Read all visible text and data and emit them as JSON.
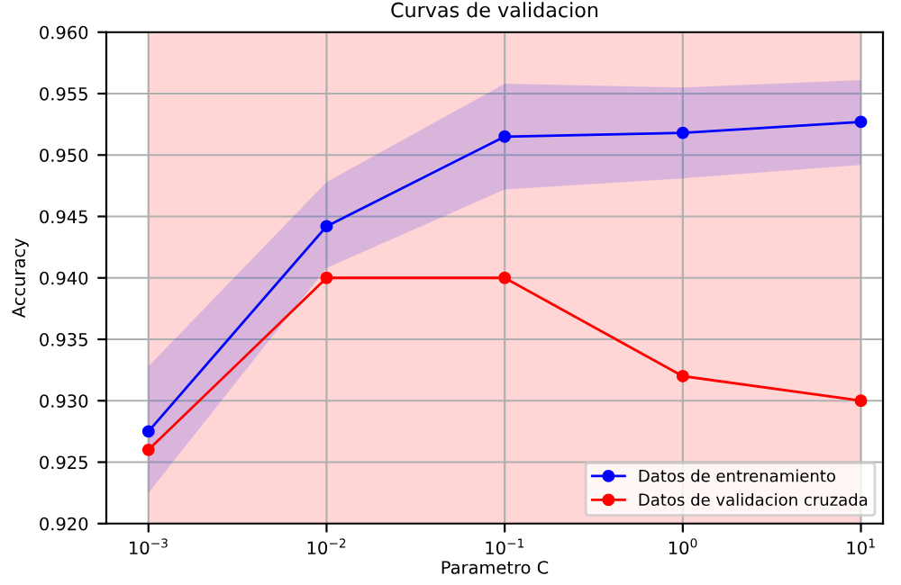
{
  "chart_data": {
    "type": "line",
    "title": "Curvas de validacion",
    "xlabel": "Parametro C",
    "ylabel": "Accuracy",
    "log": "x",
    "x": [
      0.001,
      0.01,
      0.1,
      1,
      10
    ],
    "series": [
      {
        "name": "Datos de entrenamiento",
        "color": "#0000ff",
        "values": [
          0.9275,
          0.9442,
          0.9515,
          0.9518,
          0.9527
        ],
        "lower": [
          0.9225,
          0.9408,
          0.9472,
          0.9481,
          0.9492
        ],
        "upper": [
          0.9328,
          0.9478,
          0.9558,
          0.9555,
          0.9561
        ]
      },
      {
        "name": "Datos de validacion cruzada",
        "color": "#ff0000",
        "values": [
          0.926,
          0.94,
          0.94,
          0.932,
          0.93
        ]
      }
    ],
    "bands": [
      {
        "axis": "x",
        "from": 0.001,
        "to": 10,
        "color": "#ffd5d5"
      }
    ],
    "xlim": [
      0.00058,
      13.3
    ],
    "ylim": [
      0.92,
      0.96
    ],
    "xticks": [
      {
        "value": 0.001,
        "label": "10$^{−3}$"
      },
      {
        "value": 0.01,
        "label": "10$^{−2}$"
      },
      {
        "value": 0.1,
        "label": "10$^{−1}$"
      },
      {
        "value": 1,
        "label": "10$^{0}$"
      },
      {
        "value": 10,
        "label": "10$^{1}$"
      }
    ],
    "yticks": [
      {
        "value": 0.92,
        "label": "0.920"
      },
      {
        "value": 0.925,
        "label": "0.925"
      },
      {
        "value": 0.93,
        "label": "0.930"
      },
      {
        "value": 0.935,
        "label": "0.935"
      },
      {
        "value": 0.94,
        "label": "0.940"
      },
      {
        "value": 0.945,
        "label": "0.945"
      },
      {
        "value": 0.95,
        "label": "0.950"
      },
      {
        "value": 0.955,
        "label": "0.955"
      },
      {
        "value": 0.96,
        "label": "0.960"
      }
    ],
    "grid": true,
    "legend": "lower right",
    "marker": "circle",
    "line_style": "solid"
  }
}
